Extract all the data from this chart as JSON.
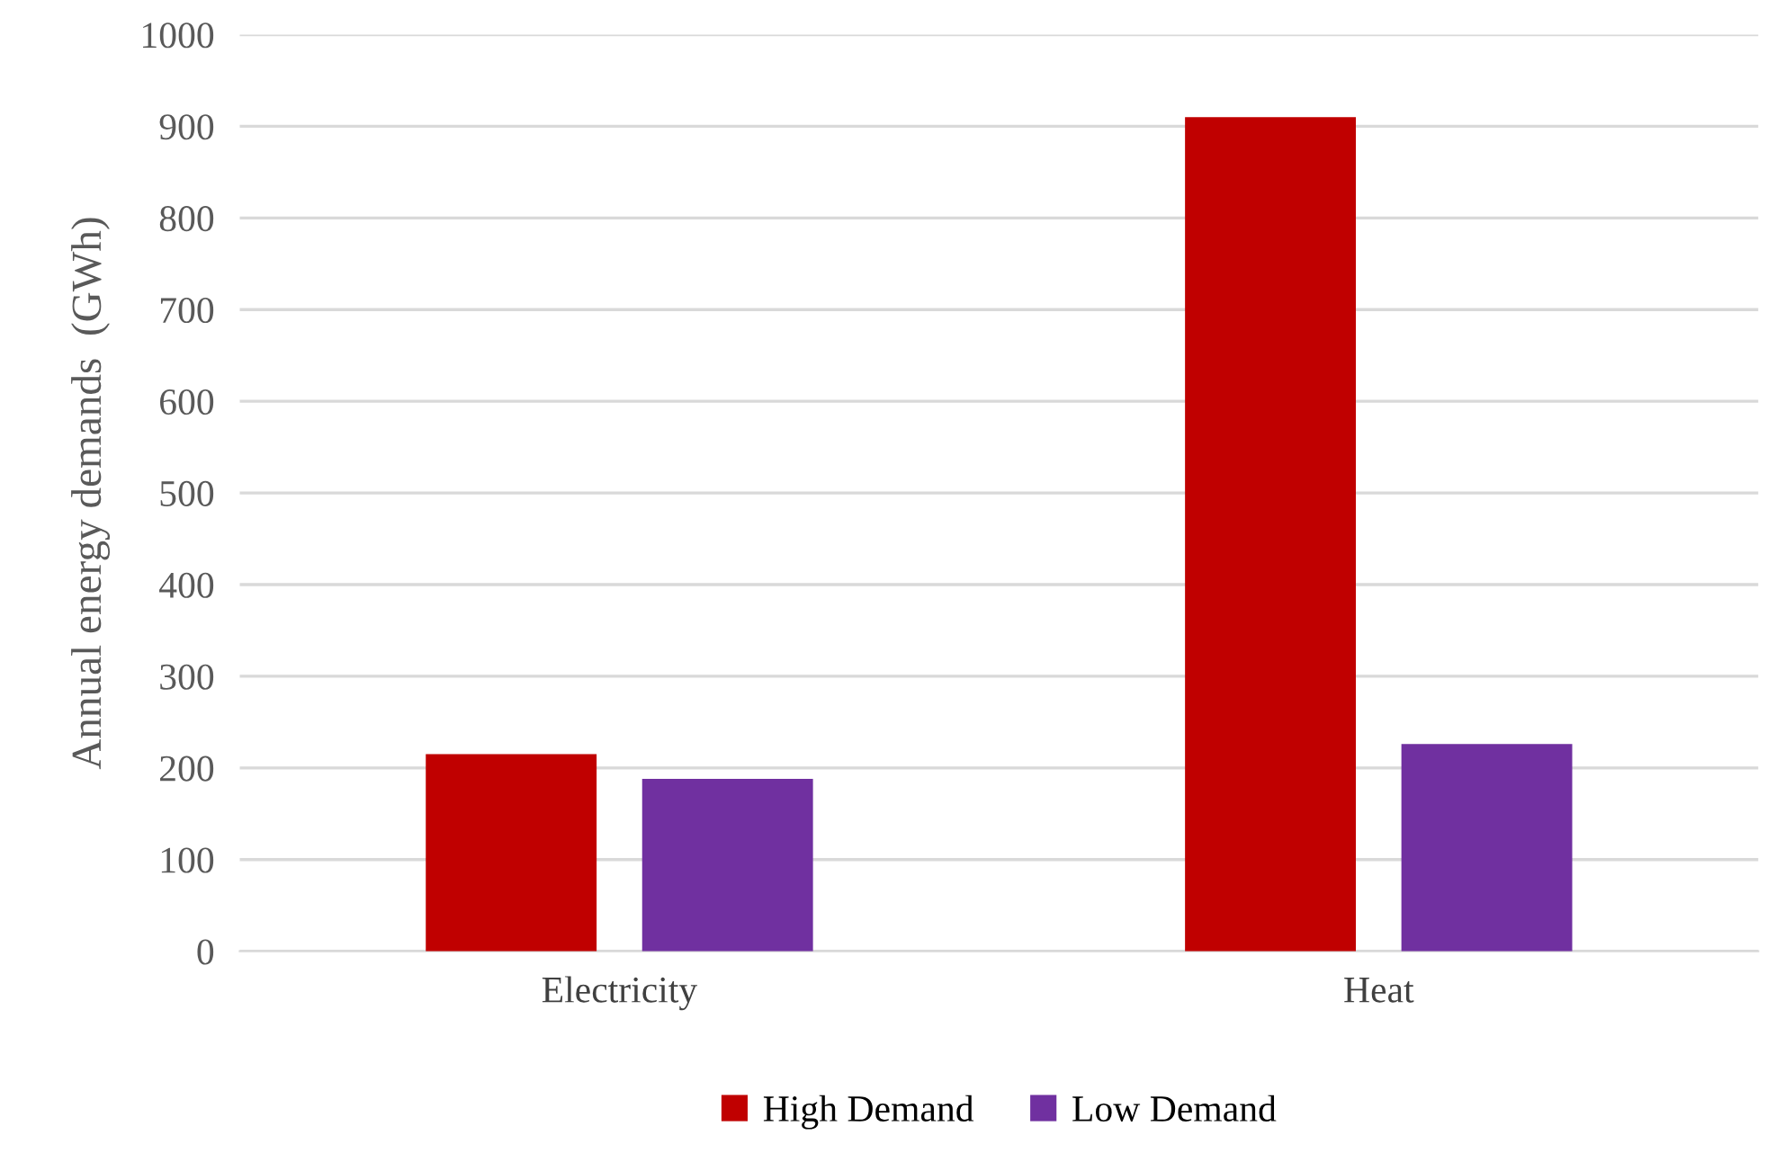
{
  "chart_data": {
    "type": "bar",
    "ylabel": "Annual energy demands  (GWh)",
    "categories": [
      "Electricity",
      "Heat"
    ],
    "series": [
      {
        "name": "High Demand",
        "color": "#c00000",
        "values": [
          215,
          910
        ]
      },
      {
        "name": "Low Demand",
        "color": "#7030a0",
        "values": [
          188,
          226
        ]
      }
    ],
    "ylim": [
      0,
      1000
    ],
    "yticks": [
      0,
      100,
      200,
      300,
      400,
      500,
      600,
      700,
      800,
      900,
      1000
    ],
    "grid": "y",
    "legend": "bottom"
  }
}
